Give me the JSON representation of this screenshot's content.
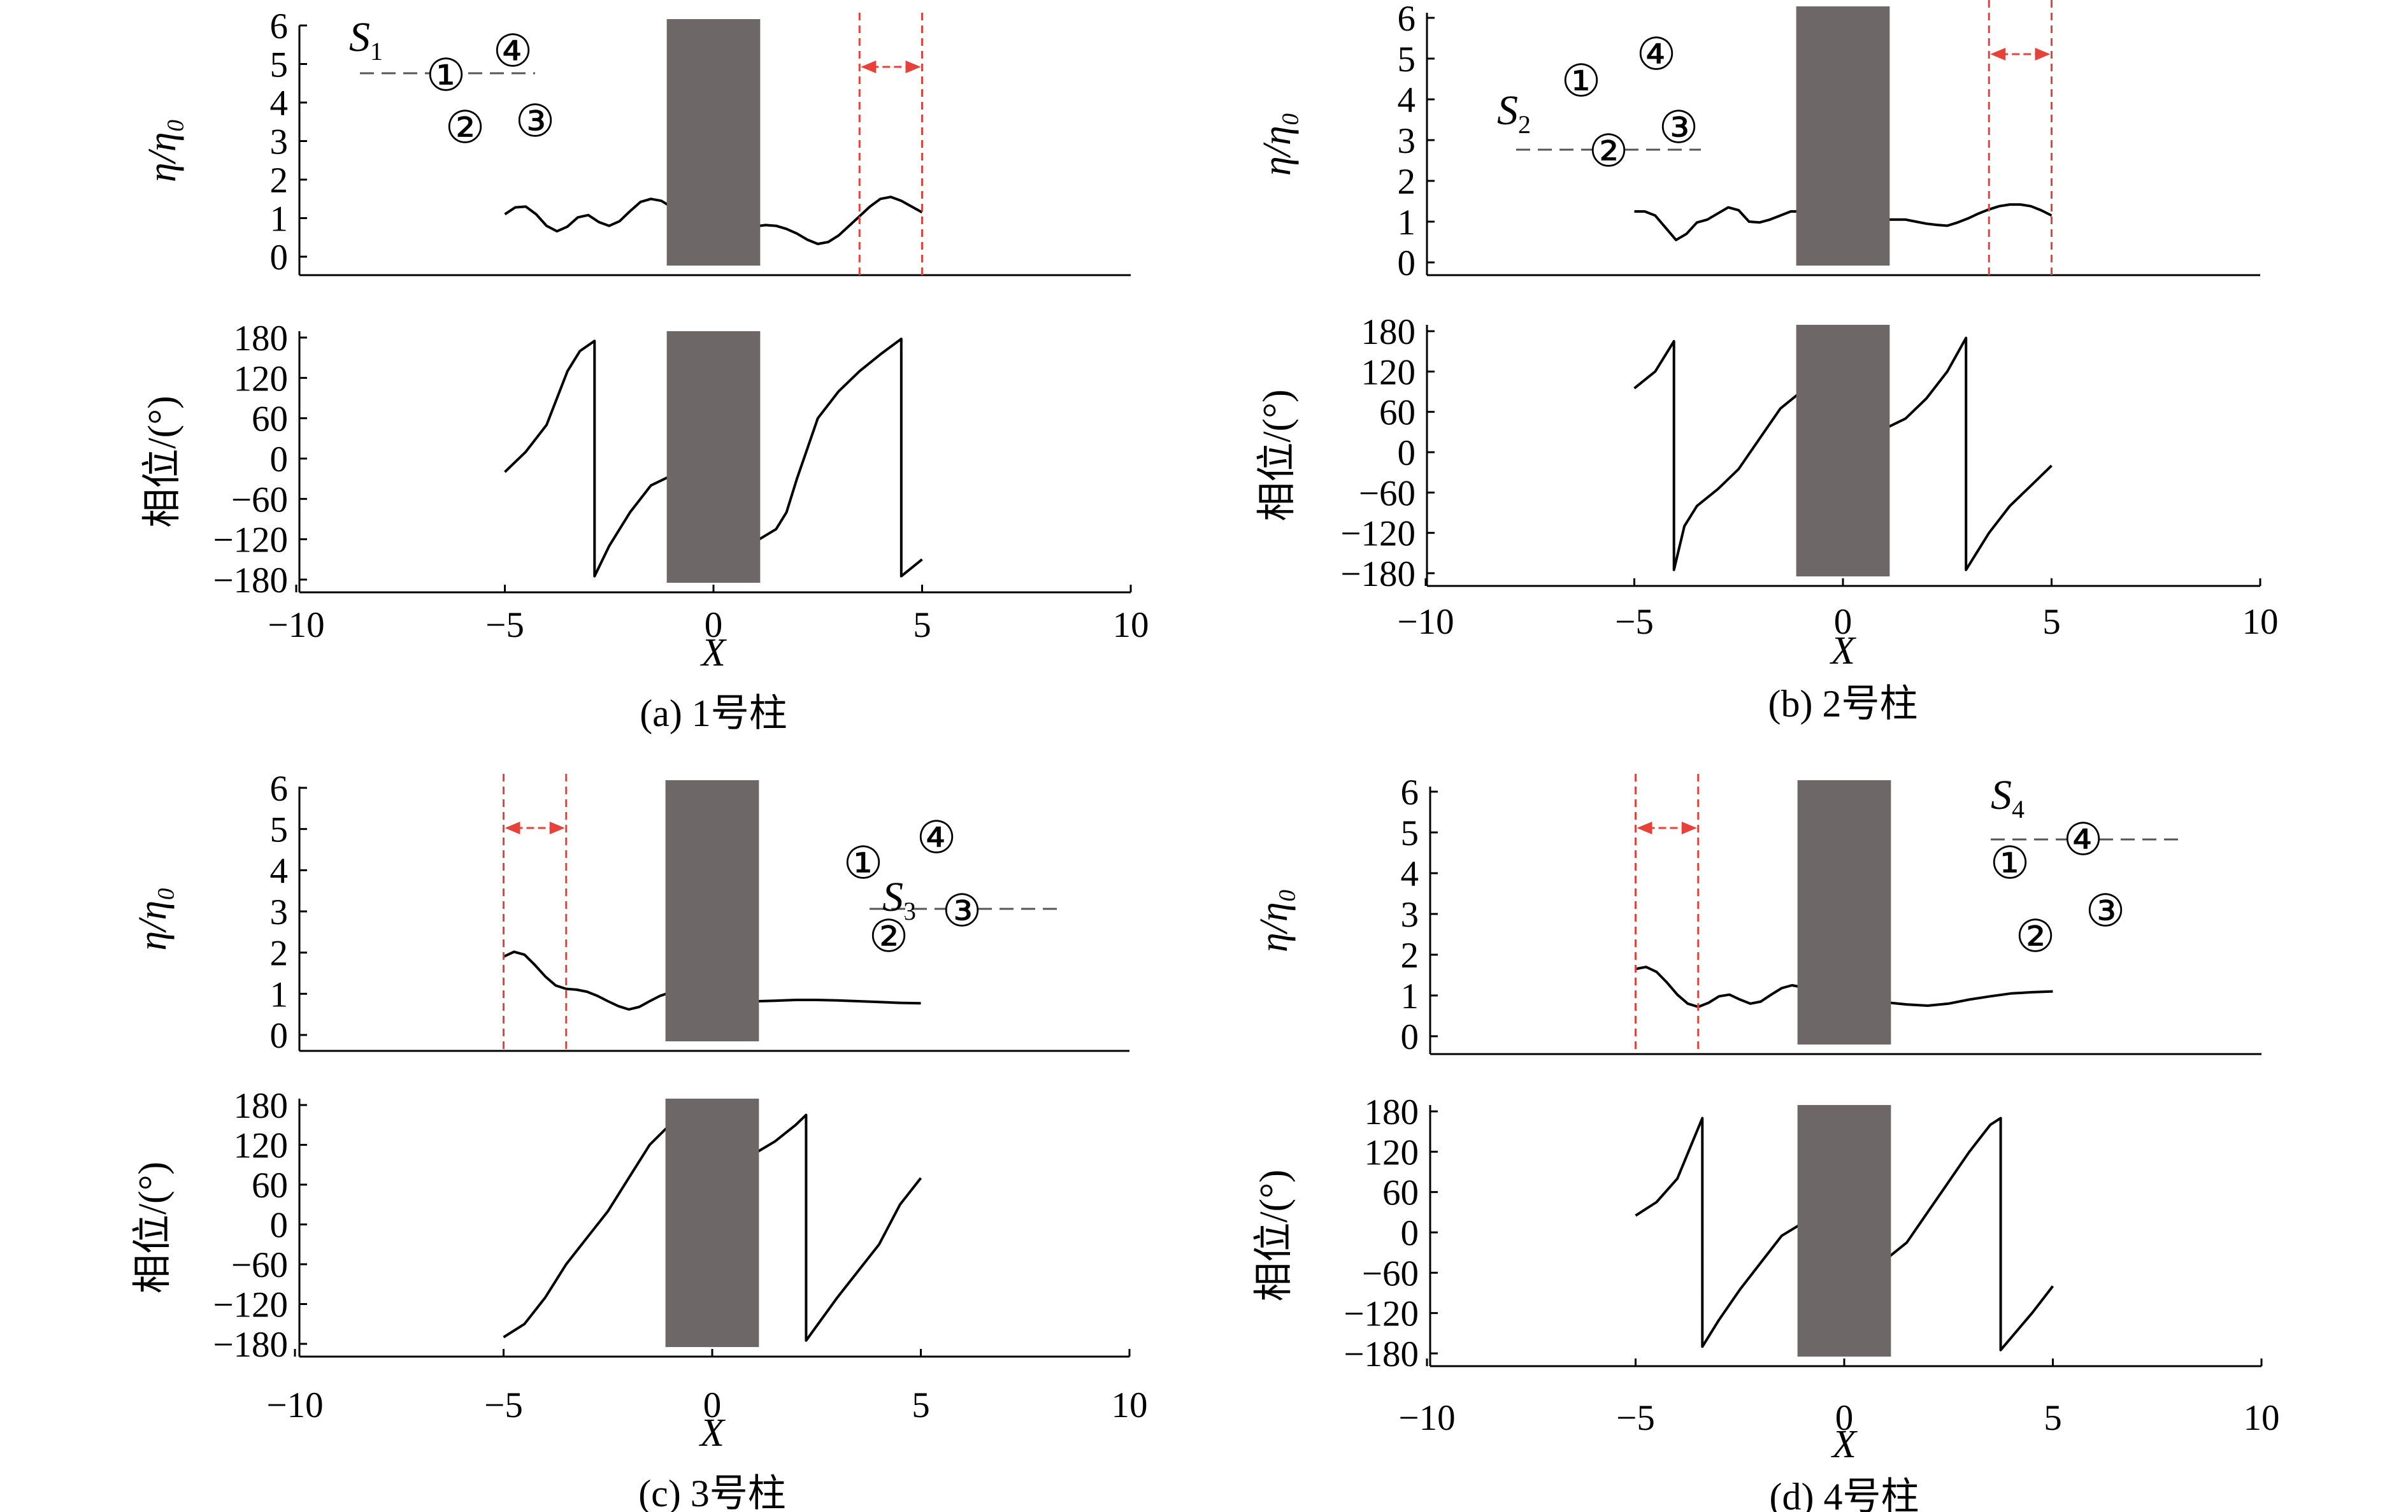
{
  "colors": {
    "line": "#000000",
    "cylinder": "#6d6767",
    "marker": "#e8413a",
    "dash": "#555555"
  },
  "chart_data": [
    {
      "type": "line",
      "panel": "a",
      "caption": "(a) 1号柱",
      "xlabel": "X",
      "amplitude": {
        "ylabel": "η/η₀",
        "ylim": [
          0,
          6
        ],
        "yticks": [
          "0",
          "1",
          "2",
          "3",
          "4",
          "5",
          "6"
        ],
        "x": [
          -5,
          -4.75,
          -4.5,
          -4.25,
          -4,
          -3.75,
          -3.5,
          -3.25,
          -3,
          -2.75,
          -2.5,
          -2.25,
          -2,
          -1.75,
          -1.5,
          -1.25,
          -1.1,
          1.1,
          1.25,
          1.5,
          1.75,
          2,
          2.25,
          2.5,
          2.75,
          3,
          3.25,
          3.5,
          3.75,
          4,
          4.25,
          4.5,
          4.75,
          5
        ],
        "y": [
          1.1,
          1.28,
          1.3,
          1.1,
          0.8,
          0.66,
          0.78,
          1.02,
          1.08,
          0.9,
          0.8,
          0.92,
          1.18,
          1.42,
          1.5,
          1.45,
          1.35,
          0.8,
          0.82,
          0.8,
          0.72,
          0.6,
          0.44,
          0.33,
          0.38,
          0.55,
          0.8,
          1.05,
          1.3,
          1.5,
          1.55,
          1.45,
          1.3,
          1.15
        ]
      },
      "phase": {
        "ylabel": "相位/(°)",
        "ylim": [
          -180,
          180
        ],
        "yticks": [
          "−180",
          "−120",
          "−60",
          "0",
          "60",
          "120",
          "180"
        ],
        "x": [
          -5,
          -4.5,
          -4,
          -3.5,
          -3.2,
          -2.85,
          -2.85,
          -2.5,
          -2,
          -1.5,
          -1.1,
          1.1,
          1.5,
          1.75,
          2,
          2.5,
          3,
          3.5,
          4,
          4.5,
          4.5,
          5
        ],
        "y": [
          -20,
          10,
          50,
          130,
          160,
          175,
          -175,
          -130,
          -80,
          -40,
          -28,
          -120,
          -105,
          -80,
          -30,
          60,
          100,
          130,
          155,
          178,
          -175,
          -150
        ]
      },
      "xticks": [
        "−10",
        "−5",
        "0",
        "5",
        "10"
      ],
      "legend": {
        "sensor_label": "S",
        "sensor_index": "1",
        "points": [
          "①",
          "②",
          "③",
          "④"
        ]
      },
      "marker": {
        "x1": 3.5,
        "x2": 5
      }
    },
    {
      "type": "line",
      "panel": "b",
      "caption": "(b) 2号柱",
      "xlabel": "X",
      "amplitude": {
        "ylabel": "η/η₀",
        "ylim": [
          0,
          6
        ],
        "yticks": [
          "0",
          "1",
          "2",
          "3",
          "4",
          "5",
          "6"
        ],
        "x": [
          -5,
          -4.75,
          -4.5,
          -4.25,
          -4,
          -3.75,
          -3.5,
          -3.25,
          -3,
          -2.75,
          -2.5,
          -2.25,
          -2,
          -1.75,
          -1.5,
          -1.25,
          -1.1,
          1.1,
          1.25,
          1.5,
          1.75,
          2,
          2.25,
          2.5,
          2.75,
          3,
          3.25,
          3.5,
          3.75,
          4,
          4.25,
          4.5,
          4.75,
          5
        ],
        "y": [
          1.25,
          1.25,
          1.15,
          0.85,
          0.55,
          0.7,
          0.98,
          1.05,
          1.2,
          1.35,
          1.28,
          1.0,
          0.98,
          1.05,
          1.15,
          1.25,
          1.25,
          1.05,
          1.05,
          1.05,
          1.0,
          0.95,
          0.92,
          0.9,
          0.98,
          1.08,
          1.2,
          1.3,
          1.38,
          1.42,
          1.42,
          1.38,
          1.28,
          1.15
        ]
      },
      "phase": {
        "ylabel": "相位/(°)",
        "ylim": [
          -180,
          180
        ],
        "yticks": [
          "−180",
          "−120",
          "−60",
          "0",
          "60",
          "120",
          "180"
        ],
        "x": [
          -5,
          -4.5,
          -4.05,
          -4.05,
          -3.8,
          -3.5,
          -3,
          -2.5,
          -2,
          -1.5,
          -1.1,
          1.1,
          1.5,
          2,
          2.5,
          2.95,
          2.95,
          3.5,
          4,
          4.5,
          5
        ],
        "y": [
          95,
          120,
          165,
          -175,
          -110,
          -80,
          -55,
          -25,
          20,
          65,
          85,
          38,
          50,
          80,
          120,
          170,
          -175,
          -120,
          -80,
          -50,
          -20
        ]
      },
      "xticks": [
        "−10",
        "−5",
        "0",
        "5",
        "10"
      ],
      "legend": {
        "sensor_label": "S",
        "sensor_index": "2",
        "points": [
          "①",
          "②",
          "③",
          "④"
        ]
      },
      "marker": {
        "x1": 3.5,
        "x2": 5
      }
    },
    {
      "type": "line",
      "panel": "c",
      "caption": "(c) 3号柱",
      "xlabel": "X",
      "amplitude": {
        "ylabel": "η/η₀",
        "ylim": [
          0,
          6
        ],
        "yticks": [
          "0",
          "1",
          "2",
          "3",
          "4",
          "5",
          "6"
        ],
        "x": [
          -5,
          -4.75,
          -4.5,
          -4.25,
          -4,
          -3.75,
          -3.5,
          -3.25,
          -3,
          -2.75,
          -2.5,
          -2.25,
          -2,
          -1.75,
          -1.5,
          -1.25,
          -1.1,
          1.1,
          1.5,
          2,
          2.5,
          3,
          3.5,
          4,
          4.5,
          5
        ],
        "y": [
          1.9,
          2.02,
          1.95,
          1.7,
          1.42,
          1.2,
          1.12,
          1.1,
          1.05,
          0.95,
          0.82,
          0.7,
          0.62,
          0.68,
          0.82,
          0.95,
          1.0,
          0.82,
          0.83,
          0.85,
          0.85,
          0.84,
          0.82,
          0.8,
          0.78,
          0.77
        ]
      },
      "phase": {
        "ylabel": "相位/(°)",
        "ylim": [
          -180,
          180
        ],
        "yticks": [
          "−180",
          "−120",
          "−60",
          "0",
          "60",
          "120",
          "180"
        ],
        "x": [
          -5,
          -4.5,
          -4,
          -3.5,
          -3,
          -2.5,
          -2,
          -1.5,
          -1.1,
          1.1,
          1.5,
          2,
          2.25,
          2.25,
          3,
          3.5,
          4,
          4.5,
          5
        ],
        "y": [
          -170,
          -150,
          -110,
          -60,
          -20,
          20,
          70,
          120,
          145,
          110,
          125,
          150,
          165,
          -175,
          -110,
          -70,
          -30,
          30,
          70
        ]
      },
      "xticks": [
        "−10",
        "−5",
        "0",
        "5",
        "10"
      ],
      "legend": {
        "sensor_label": "S",
        "sensor_index": "3",
        "points": [
          "①",
          "②",
          "③",
          "④"
        ]
      },
      "marker": {
        "x1": -5,
        "x2": -3.5
      }
    },
    {
      "type": "line",
      "panel": "d",
      "caption": "(d) 4号柱",
      "xlabel": "X",
      "amplitude": {
        "ylabel": "η/η₀",
        "ylim": [
          0,
          6
        ],
        "yticks": [
          "0",
          "1",
          "2",
          "3",
          "4",
          "5",
          "6"
        ],
        "x": [
          -5,
          -4.75,
          -4.5,
          -4.25,
          -4,
          -3.75,
          -3.5,
          -3.25,
          -3,
          -2.75,
          -2.5,
          -2.25,
          -2,
          -1.75,
          -1.5,
          -1.25,
          -1.1,
          1.1,
          1.5,
          2,
          2.5,
          3,
          3.5,
          4,
          4.5,
          5
        ],
        "y": [
          1.65,
          1.7,
          1.58,
          1.32,
          1.02,
          0.8,
          0.72,
          0.82,
          0.98,
          1.02,
          0.9,
          0.8,
          0.85,
          1.02,
          1.18,
          1.25,
          1.22,
          0.82,
          0.78,
          0.75,
          0.8,
          0.9,
          0.98,
          1.05,
          1.08,
          1.1
        ]
      },
      "phase": {
        "ylabel": "相位/(°)",
        "ylim": [
          -180,
          180
        ],
        "yticks": [
          "−180",
          "−120",
          "−60",
          "0",
          "60",
          "120",
          "180"
        ],
        "x": [
          -5,
          -4.5,
          -4,
          -3.6,
          -3.4,
          -3.4,
          -3,
          -2.5,
          -2,
          -1.5,
          -1.1,
          1.1,
          1.5,
          2,
          2.5,
          3,
          3.5,
          3.75,
          3.75,
          4.5,
          5
        ],
        "y": [
          25,
          45,
          80,
          140,
          170,
          -170,
          -130,
          -85,
          -45,
          -5,
          10,
          -35,
          -15,
          30,
          75,
          120,
          160,
          170,
          -175,
          -120,
          -80
        ]
      },
      "xticks": [
        "−10",
        "−5",
        "0",
        "5",
        "10"
      ],
      "legend": {
        "sensor_label": "S",
        "sensor_index": "4",
        "points": [
          "①",
          "②",
          "③",
          "④"
        ]
      },
      "marker": {
        "x1": -5,
        "x2": -3.5
      }
    }
  ]
}
